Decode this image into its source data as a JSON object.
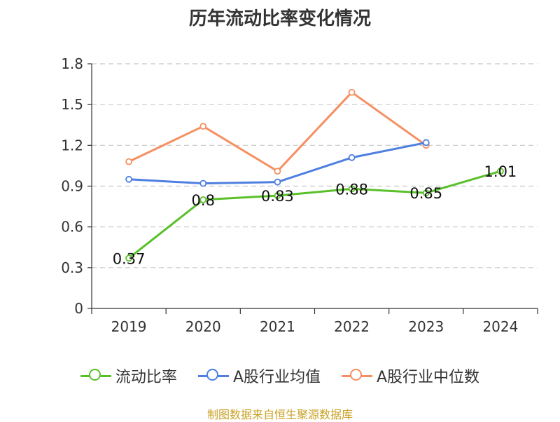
{
  "chart_data": {
    "type": "line",
    "title": "历年流动比率变化情况",
    "categories": [
      "2019",
      "2020",
      "2021",
      "2022",
      "2023",
      "2024"
    ],
    "yticks": [
      "0",
      "0.3",
      "0.6",
      "0.9",
      "1.2",
      "1.5",
      "1.8"
    ],
    "ylim": [
      0,
      1.8
    ],
    "grid": true,
    "legend_position": "bottom",
    "series": [
      {
        "name": "流动比率",
        "color": "#5ac02a",
        "values": [
          0.37,
          0.8,
          0.83,
          0.88,
          0.85,
          1.01
        ],
        "labels": [
          "0.37",
          "0.8",
          "0.83",
          "0.88",
          "0.85",
          "1.01"
        ]
      },
      {
        "name": "A股行业均值",
        "color": "#4f7fe0",
        "values": [
          0.95,
          0.92,
          0.93,
          1.11,
          1.22,
          null
        ]
      },
      {
        "name": "A股行业中位数",
        "color": "#f59062",
        "values": [
          1.08,
          1.34,
          1.01,
          1.59,
          1.2,
          null
        ]
      }
    ]
  },
  "source": "制图数据来自恒生聚源数据库"
}
